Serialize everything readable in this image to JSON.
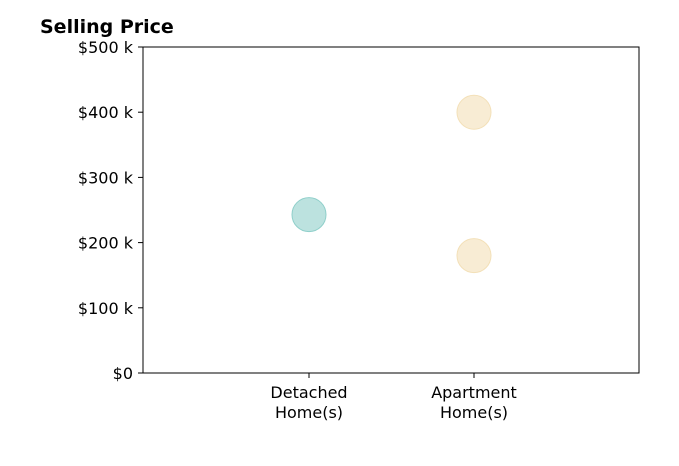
{
  "chart_data": {
    "type": "scatter",
    "title": "Selling Price",
    "xlabel": "",
    "ylabel": "",
    "categories": [
      [
        "Detached",
        "Home(s)"
      ],
      [
        "Apartment",
        "Home(s)"
      ]
    ],
    "ylim": [
      0,
      500000
    ],
    "y_ticks": [
      {
        "value": 0,
        "label": "$0"
      },
      {
        "value": 100000,
        "label": "$100 k"
      },
      {
        "value": 200000,
        "label": "$200 k"
      },
      {
        "value": 300000,
        "label": "$300 k"
      },
      {
        "value": 400000,
        "label": "$400 k"
      },
      {
        "value": 500000,
        "label": "$500 k"
      }
    ],
    "points": [
      {
        "category": 0,
        "value": 243000,
        "color": "#8fcfca"
      },
      {
        "category": 1,
        "value": 400000,
        "color": "#f3e0b8"
      },
      {
        "category": 1,
        "value": 180000,
        "color": "#f3e0b8"
      }
    ],
    "grid": false,
    "legend": "none"
  }
}
